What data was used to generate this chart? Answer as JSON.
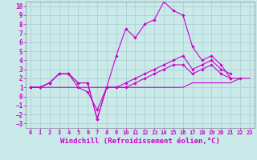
{
  "background_color": "#caeaea",
  "grid_color": "#aacccc",
  "line_color": "#cc00cc",
  "xlabel": "Windchill (Refroidissement éolien,°C)",
  "xlabel_fontsize": 6.5,
  "ytick_fontsize": 5.5,
  "xtick_fontsize": 5.0,
  "ylim": [
    -3.5,
    10.5
  ],
  "xlim": [
    -0.5,
    23.5
  ],
  "xticks": [
    0,
    1,
    2,
    3,
    4,
    5,
    6,
    7,
    8,
    9,
    10,
    11,
    12,
    13,
    14,
    15,
    16,
    17,
    18,
    19,
    20,
    21,
    22,
    23
  ],
  "yticks": [
    -3,
    -2,
    -1,
    0,
    1,
    2,
    3,
    4,
    5,
    6,
    7,
    8,
    9,
    10
  ],
  "series": [
    {
      "x": [
        0,
        1,
        2,
        3,
        4,
        5,
        6,
        7,
        8,
        9,
        10,
        11,
        12,
        13,
        14,
        15,
        16,
        17,
        18,
        19,
        20,
        21,
        22
      ],
      "y": [
        1.0,
        1.0,
        1.5,
        2.5,
        2.5,
        1.0,
        0.5,
        -1.5,
        1.0,
        4.5,
        7.5,
        6.5,
        8.0,
        8.5,
        10.5,
        9.5,
        9.0,
        5.5,
        4.0,
        4.5,
        3.5,
        2.0,
        2.0
      ],
      "marker": "D",
      "ms": 1.8,
      "lw": 0.8
    },
    {
      "x": [
        0,
        1,
        2,
        3,
        4,
        5,
        6,
        7,
        8,
        9,
        10,
        11,
        12,
        13,
        14,
        15,
        16,
        17,
        18,
        19,
        20,
        21
      ],
      "y": [
        1.0,
        1.0,
        1.5,
        2.5,
        2.5,
        1.5,
        1.5,
        -2.5,
        1.0,
        1.0,
        1.5,
        2.0,
        2.5,
        3.0,
        3.5,
        4.0,
        4.5,
        3.0,
        3.5,
        4.0,
        3.0,
        2.5
      ],
      "marker": "D",
      "ms": 1.8,
      "lw": 0.8
    },
    {
      "x": [
        0,
        1,
        2,
        3,
        4,
        5,
        6,
        7,
        8,
        9,
        10,
        11,
        12,
        13,
        14,
        15,
        16,
        17,
        18,
        19,
        20,
        21
      ],
      "y": [
        1.0,
        1.0,
        1.5,
        2.5,
        2.5,
        1.5,
        1.5,
        -2.5,
        1.0,
        1.0,
        1.0,
        1.5,
        2.0,
        2.5,
        3.0,
        3.5,
        3.5,
        2.5,
        3.0,
        3.5,
        2.5,
        2.0
      ],
      "marker": "D",
      "ms": 1.8,
      "lw": 0.8
    },
    {
      "x": [
        0,
        1,
        2,
        3,
        4,
        5,
        6,
        7,
        8,
        9,
        10,
        11,
        12,
        13,
        14,
        15,
        16,
        17,
        18,
        19,
        20,
        21,
        22,
        23
      ],
      "y": [
        1.0,
        1.0,
        1.0,
        1.0,
        1.0,
        1.0,
        1.0,
        1.0,
        1.0,
        1.0,
        1.0,
        1.0,
        1.0,
        1.0,
        1.0,
        1.0,
        1.0,
        1.5,
        1.5,
        1.5,
        1.5,
        1.5,
        2.0,
        2.0
      ],
      "marker": null,
      "ms": 0,
      "lw": 0.8
    }
  ]
}
